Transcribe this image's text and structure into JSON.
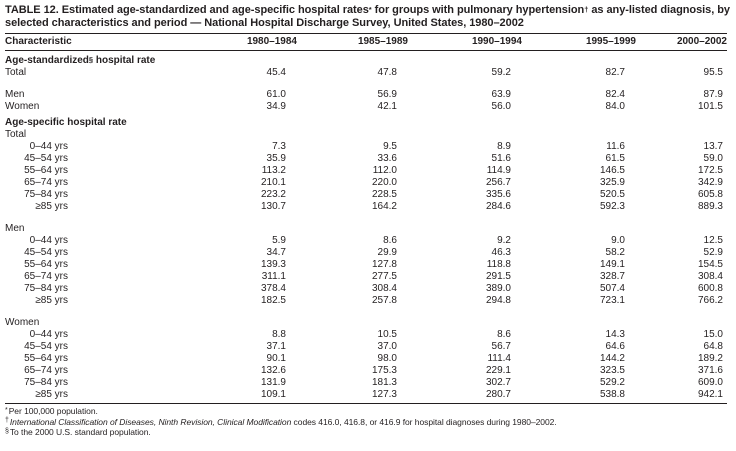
{
  "title": {
    "part1": "TABLE 12. Estimated age-standardized and age-specific hospital rates",
    "sup1": "*",
    "part2": " for groups with pulmonary hypertension",
    "sup2": "†",
    "part3": " as any-listed diagnosis, by selected characteristics and period — National Hospital Discharge Survey, United States, 1980–2002"
  },
  "table": {
    "columns": [
      "Characteristic",
      "1980–1984",
      "1985–1989",
      "1990–1994",
      "1995–1999",
      "2000–2002"
    ],
    "sections": [
      {
        "heading": {
          "pre": "Age-standardized",
          "sup": "§",
          "post": " hospital rate"
        },
        "rows": [
          {
            "type": "data",
            "label": "Total",
            "indent": false,
            "values": [
              "45.4",
              "47.8",
              "59.2",
              "82.7",
              "95.5"
            ]
          },
          {
            "type": "spacer"
          },
          {
            "type": "data",
            "label": "Men",
            "indent": false,
            "values": [
              "61.0",
              "56.9",
              "63.9",
              "82.4",
              "87.9"
            ]
          },
          {
            "type": "data",
            "label": "Women",
            "indent": false,
            "values": [
              "34.9",
              "42.1",
              "56.0",
              "84.0",
              "101.5"
            ]
          }
        ]
      },
      {
        "heading": {
          "pre": "Age-specific hospital rate",
          "sup": "",
          "post": ""
        },
        "rows": [
          {
            "type": "subheader",
            "label": "Total"
          },
          {
            "type": "data",
            "label": "0–44 yrs",
            "indent": true,
            "values": [
              "7.3",
              "9.5",
              "8.9",
              "11.6",
              "13.7"
            ]
          },
          {
            "type": "data",
            "label": "45–54 yrs",
            "indent": true,
            "values": [
              "35.9",
              "33.6",
              "51.6",
              "61.5",
              "59.0"
            ]
          },
          {
            "type": "data",
            "label": "55–64 yrs",
            "indent": true,
            "values": [
              "113.2",
              "112.0",
              "114.9",
              "146.5",
              "172.5"
            ]
          },
          {
            "type": "data",
            "label": "65–74 yrs",
            "indent": true,
            "values": [
              "210.1",
              "220.0",
              "256.7",
              "325.9",
              "342.9"
            ]
          },
          {
            "type": "data",
            "label": "75–84 yrs",
            "indent": true,
            "values": [
              "223.2",
              "228.5",
              "335.6",
              "520.5",
              "605.8"
            ]
          },
          {
            "type": "data",
            "label": "≥85 yrs",
            "indent": true,
            "values": [
              "130.7",
              "164.2",
              "284.6",
              "592.3",
              "889.3"
            ]
          },
          {
            "type": "spacer"
          },
          {
            "type": "subheader",
            "label": "Men"
          },
          {
            "type": "data",
            "label": "0–44 yrs",
            "indent": true,
            "values": [
              "5.9",
              "8.6",
              "9.2",
              "9.0",
              "12.5"
            ]
          },
          {
            "type": "data",
            "label": "45–54 yrs",
            "indent": true,
            "values": [
              "34.7",
              "29.9",
              "46.3",
              "58.2",
              "52.9"
            ]
          },
          {
            "type": "data",
            "label": "55–64 yrs",
            "indent": true,
            "values": [
              "139.3",
              "127.8",
              "118.8",
              "149.1",
              "154.5"
            ]
          },
          {
            "type": "data",
            "label": "65–74 yrs",
            "indent": true,
            "values": [
              "311.1",
              "277.5",
              "291.5",
              "328.7",
              "308.4"
            ]
          },
          {
            "type": "data",
            "label": "75–84 yrs",
            "indent": true,
            "values": [
              "378.4",
              "308.4",
              "389.0",
              "507.4",
              "600.8"
            ]
          },
          {
            "type": "data",
            "label": "≥85 yrs",
            "indent": true,
            "values": [
              "182.5",
              "257.8",
              "294.8",
              "723.1",
              "766.2"
            ]
          },
          {
            "type": "spacer"
          },
          {
            "type": "subheader",
            "label": "Women"
          },
          {
            "type": "data",
            "label": "0–44 yrs",
            "indent": true,
            "values": [
              "8.8",
              "10.5",
              "8.6",
              "14.3",
              "15.0"
            ]
          },
          {
            "type": "data",
            "label": "45–54 yrs",
            "indent": true,
            "values": [
              "37.1",
              "37.0",
              "56.7",
              "64.6",
              "64.8"
            ]
          },
          {
            "type": "data",
            "label": "55–64 yrs",
            "indent": true,
            "values": [
              "90.1",
              "98.0",
              "111.4",
              "144.2",
              "189.2"
            ]
          },
          {
            "type": "data",
            "label": "65–74 yrs",
            "indent": true,
            "values": [
              "132.6",
              "175.3",
              "229.1",
              "323.5",
              "371.6"
            ]
          },
          {
            "type": "data",
            "label": "75–84 yrs",
            "indent": true,
            "values": [
              "131.9",
              "181.3",
              "302.7",
              "529.2",
              "609.0"
            ]
          },
          {
            "type": "data",
            "label": "≥85 yrs",
            "indent": true,
            "values": [
              "109.1",
              "127.3",
              "280.7",
              "538.8",
              "942.1"
            ]
          }
        ]
      }
    ]
  },
  "footnotes": [
    {
      "marker": "*",
      "italic": "",
      "text": "Per 100,000 population."
    },
    {
      "marker": "†",
      "italic": "International Classification of Diseases, Ninth Revision, Clinical Modification",
      "text": " codes 416.0, 416.8, or 416.9 for hospital diagnoses during 1980–2002."
    },
    {
      "marker": "§",
      "italic": "",
      "text": "To the 2000 U.S. standard population."
    }
  ]
}
